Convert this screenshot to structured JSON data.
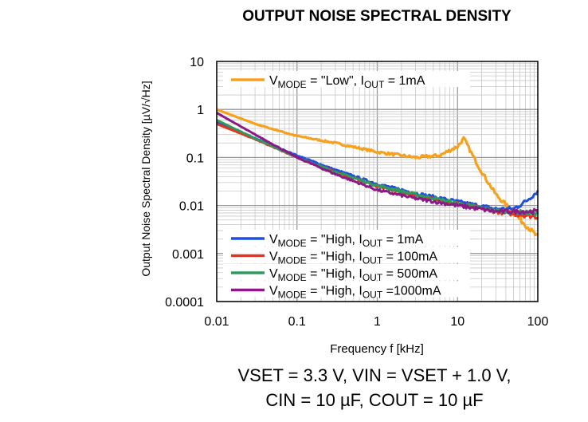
{
  "chart_data": {
    "type": "line",
    "title": "OUTPUT NOISE SPECTRAL DENSITY",
    "xlabel": "Frequency f [kHz]",
    "ylabel": "Output Noise Spectral Density [µV/√Hz]",
    "xscale": "log",
    "yscale": "log",
    "xlim": [
      0.01,
      100
    ],
    "ylim": [
      0.0001,
      10
    ],
    "xticks": [
      "0.01",
      "0.1",
      "1",
      "10",
      "100"
    ],
    "yticks": [
      "10",
      "1",
      "0.1",
      "0.01",
      "0.001",
      "0.0001"
    ],
    "grid": true,
    "legend": [
      "top-left",
      "bottom-left"
    ],
    "series": [
      {
        "name": "VMODE = \"Low\", IOUT = 1mA",
        "color": "#f7a11a",
        "x": [
          0.01,
          0.03,
          0.1,
          0.3,
          1,
          3,
          6,
          10,
          12,
          15,
          20,
          30,
          50,
          100
        ],
        "y": [
          1.0,
          0.5,
          0.28,
          0.2,
          0.13,
          0.1,
          0.11,
          0.17,
          0.25,
          0.12,
          0.05,
          0.017,
          0.007,
          0.0022
        ]
      },
      {
        "name": "VMODE = \"High, IOUT = 1mA",
        "color": "#1f4fe0",
        "x": [
          0.01,
          0.03,
          0.1,
          0.3,
          1,
          3,
          10,
          30,
          50,
          70,
          100
        ],
        "y": [
          0.55,
          0.25,
          0.11,
          0.055,
          0.028,
          0.018,
          0.012,
          0.0085,
          0.0085,
          0.012,
          0.02
        ]
      },
      {
        "name": "VMODE = \"High, IOUT = 100mA",
        "color": "#e8321e",
        "x": [
          0.01,
          0.03,
          0.1,
          0.3,
          1,
          3,
          10,
          30,
          100
        ],
        "y": [
          0.5,
          0.24,
          0.1,
          0.05,
          0.025,
          0.016,
          0.011,
          0.0075,
          0.0058
        ]
      },
      {
        "name": "VMODE = \"High, IOUT = 500mA",
        "color": "#2e9a5e",
        "x": [
          0.01,
          0.03,
          0.1,
          0.3,
          1,
          3,
          10,
          30,
          100
        ],
        "y": [
          0.6,
          0.25,
          0.1,
          0.05,
          0.026,
          0.017,
          0.011,
          0.0078,
          0.0068
        ]
      },
      {
        "name": "VMODE = \"High, IOUT =1000mA",
        "color": "#8a1a86",
        "x": [
          0.01,
          0.03,
          0.1,
          0.3,
          1,
          3,
          10,
          30,
          100
        ],
        "y": [
          0.85,
          0.3,
          0.1,
          0.045,
          0.021,
          0.014,
          0.01,
          0.0075,
          0.0075
        ]
      }
    ]
  },
  "footer": {
    "line1": "VSET = 3.3 V, VIN = VSET + 1.0 V,",
    "line2": "CIN = 10 µF, COUT = 10 µF"
  }
}
